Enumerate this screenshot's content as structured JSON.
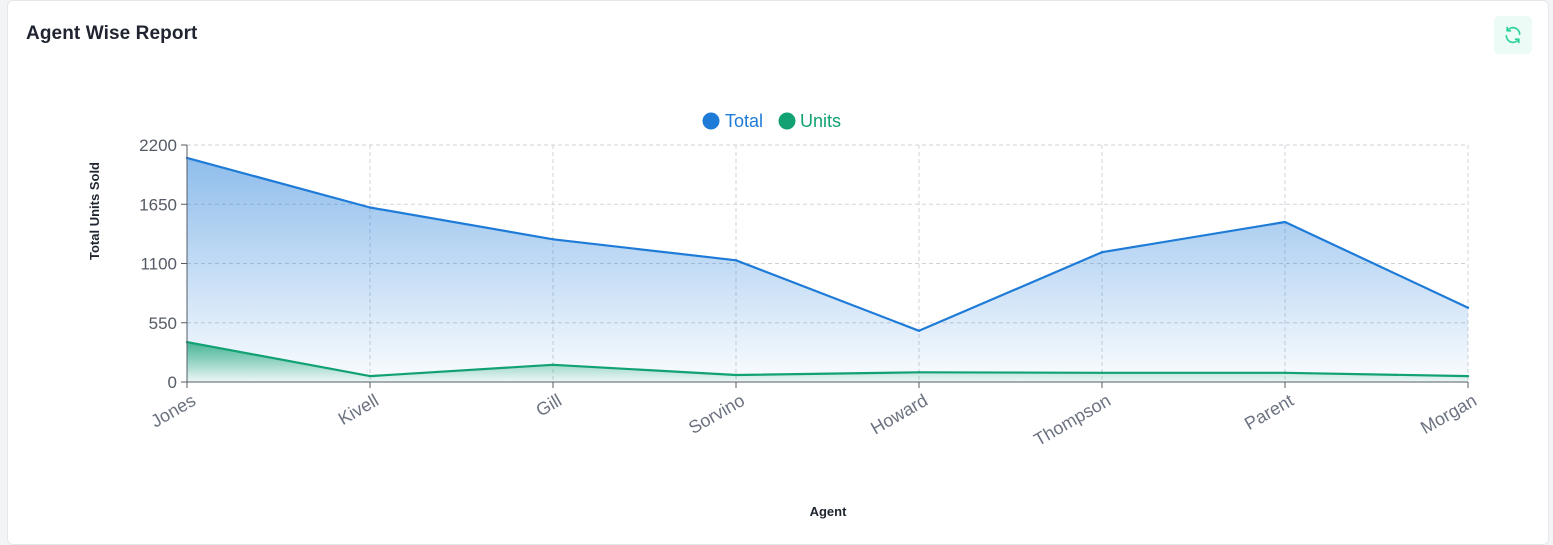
{
  "card": {
    "title": "Agent Wise Report"
  },
  "toolbar": {
    "refresh_icon": "refresh-icon"
  },
  "colors": {
    "total": "#1e7bd8",
    "units": "#11a172",
    "grid": "#cfd3d9",
    "axis": "#555b66"
  },
  "chart_data": {
    "type": "area",
    "title": "",
    "xlabel": "Agent",
    "ylabel": "Total Units Sold",
    "categories": [
      "Jones",
      "Kivell",
      "Gill",
      "Sorvino",
      "Howard",
      "Thompson",
      "Parent",
      "Morgan"
    ],
    "series": [
      {
        "name": "Total",
        "values": [
          2080,
          1620,
          1325,
          1130,
          475,
          1205,
          1485,
          690
        ]
      },
      {
        "name": "Units",
        "values": [
          370,
          55,
          160,
          65,
          90,
          85,
          85,
          55
        ]
      }
    ],
    "ylim": [
      0,
      2200
    ],
    "yticks": [
      "0",
      "550",
      "1100",
      "1650",
      "2200"
    ],
    "grid": true,
    "legend_position": "top-center"
  }
}
